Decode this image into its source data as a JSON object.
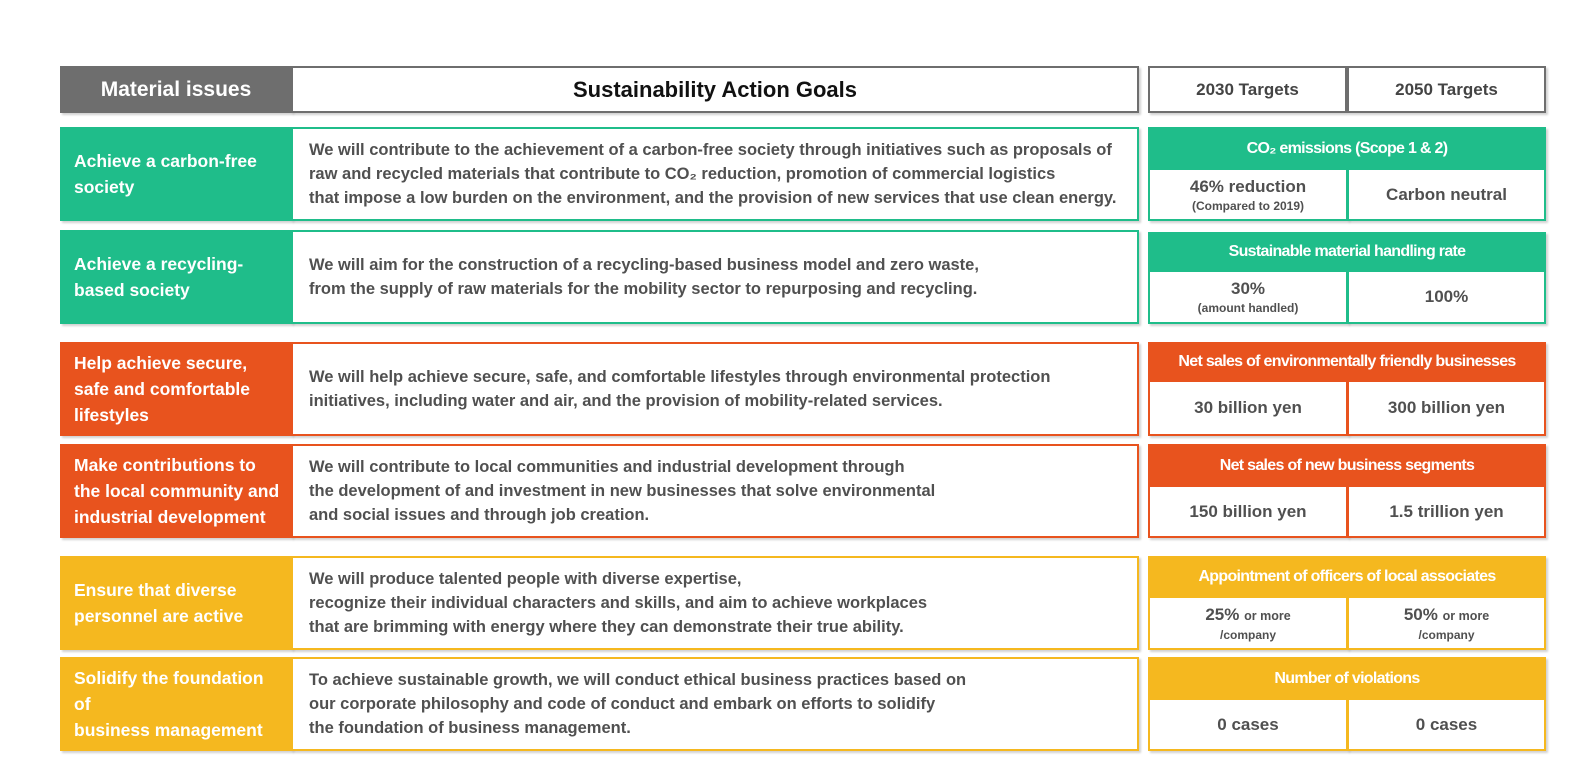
{
  "colors": {
    "header_gray": "#6e6e6e",
    "green": "#1fbd8a",
    "orange": "#e8531e",
    "yellow": "#f5b81f"
  },
  "header": {
    "material_issues": "Material issues",
    "action_goals": "Sustainability Action Goals",
    "targets_2030": "2030 Targets",
    "targets_2050": "2050 Targets"
  },
  "rows": [
    {
      "issue": [
        "Achieve a carbon-free",
        "society"
      ],
      "goal": "We will contribute to the achievement of a carbon-free society through initiatives such as proposals of\nraw and recycled materials that contribute to CO₂ reduction, promotion of commercial logistics\nthat impose a low burden on the environment, and the provision of new services that use clean energy.",
      "kpi": "CO₂ emissions (Scope 1 & 2)",
      "target_2030": "46% reduction",
      "target_2030_note": "(Compared to 2019)",
      "target_2050": "Carbon neutral"
    },
    {
      "issue": [
        "Achieve a recycling-",
        "based society"
      ],
      "goal": "We will aim for the construction of a recycling-based business model and zero waste,\nfrom the supply of raw materials for the mobility sector to repurposing and recycling.",
      "kpi": "Sustainable material handling rate",
      "target_2030": "30%",
      "target_2030_note": "(amount handled)",
      "target_2050": "100%"
    },
    {
      "issue": [
        "Help achieve secure,",
        "safe and comfortable",
        "lifestyles"
      ],
      "goal": "We will help achieve secure, safe, and comfortable lifestyles through environmental protection\ninitiatives, including water and air, and the provision of mobility-related services.",
      "kpi": "Net sales of environmentally friendly businesses",
      "target_2030": "30 billion yen",
      "target_2050": "300 billion yen"
    },
    {
      "issue": [
        "Make contributions to",
        "the local community and",
        "industrial development"
      ],
      "goal": "We will contribute to local communities and industrial development through\nthe development of and investment in new businesses that solve environmental\nand social issues and through job creation.",
      "kpi": "Net sales of new business segments",
      "target_2030": "150 billion yen",
      "target_2050": "1.5 trillion yen"
    },
    {
      "issue": [
        "Ensure that diverse",
        "personnel are active"
      ],
      "goal": "We will produce talented people with diverse expertise,\nrecognize their individual characters and skills, and aim to achieve workplaces\nthat are brimming with energy where they can demonstrate their true ability.",
      "kpi": "Appointment of officers of local associates",
      "target_2030": "25%",
      "target_2030_suffix": "or more",
      "target_2030_note": "/company",
      "target_2050": "50%",
      "target_2050_suffix": "or more",
      "target_2050_note": "/company"
    },
    {
      "issue": [
        "Solidify the foundation of",
        "business management"
      ],
      "goal": "To achieve sustainable growth, we will conduct ethical business practices based on\nour corporate philosophy and code of conduct and embark on efforts to solidify\nthe foundation of business management.",
      "kpi": "Number of violations",
      "target_2030": "0 cases",
      "target_2050": "0 cases"
    }
  ]
}
